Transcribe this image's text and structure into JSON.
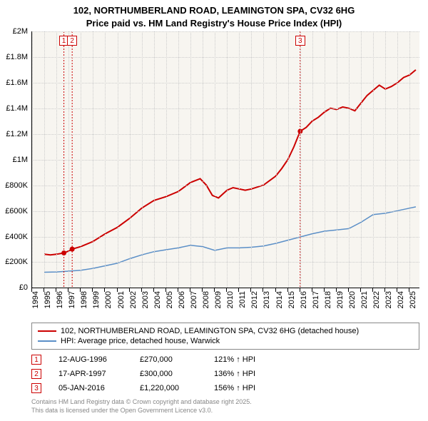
{
  "title_line1": "102, NORTHUMBERLAND ROAD, LEAMINGTON SPA, CV32 6HG",
  "title_line2": "Price paid vs. HM Land Registry's House Price Index (HPI)",
  "chart": {
    "type": "line",
    "background_color": "#f7f5f0",
    "grid_color": "#cccccc",
    "xlim": [
      1994,
      2025.8
    ],
    "ylim": [
      0,
      2000000
    ],
    "ytick_step": 200000,
    "yticks": [
      {
        "v": 0,
        "label": "£0"
      },
      {
        "v": 200000,
        "label": "£200K"
      },
      {
        "v": 400000,
        "label": "£400K"
      },
      {
        "v": 600000,
        "label": "£600K"
      },
      {
        "v": 800000,
        "label": "£800K"
      },
      {
        "v": 1000000,
        "label": "£1M"
      },
      {
        "v": 1200000,
        "label": "£1.2M"
      },
      {
        "v": 1400000,
        "label": "£1.4M"
      },
      {
        "v": 1600000,
        "label": "£1.6M"
      },
      {
        "v": 1800000,
        "label": "£1.8M"
      },
      {
        "v": 2000000,
        "label": "£2M"
      }
    ],
    "xticks": [
      1994,
      1995,
      1996,
      1997,
      1998,
      1999,
      2000,
      2001,
      2002,
      2003,
      2004,
      2005,
      2006,
      2007,
      2008,
      2009,
      2010,
      2011,
      2012,
      2013,
      2014,
      2015,
      2016,
      2017,
      2018,
      2019,
      2020,
      2021,
      2022,
      2023,
      2024,
      2025
    ],
    "series": [
      {
        "name": "102, NORTHUMBERLAND ROAD, LEAMINGTON SPA, CV32 6HG (detached house)",
        "color": "#cc0000",
        "line_width": 2,
        "data": [
          [
            1995,
            260000
          ],
          [
            1995.5,
            255000
          ],
          [
            1996,
            260000
          ],
          [
            1996.6,
            270000
          ],
          [
            1997,
            285000
          ],
          [
            1997.3,
            300000
          ],
          [
            1998,
            320000
          ],
          [
            1999,
            360000
          ],
          [
            2000,
            420000
          ],
          [
            2001,
            470000
          ],
          [
            2002,
            540000
          ],
          [
            2003,
            620000
          ],
          [
            2004,
            680000
          ],
          [
            2005,
            710000
          ],
          [
            2006,
            750000
          ],
          [
            2007,
            820000
          ],
          [
            2007.8,
            850000
          ],
          [
            2008.3,
            800000
          ],
          [
            2008.8,
            720000
          ],
          [
            2009.3,
            700000
          ],
          [
            2010,
            760000
          ],
          [
            2010.5,
            780000
          ],
          [
            2011,
            770000
          ],
          [
            2011.5,
            760000
          ],
          [
            2012,
            770000
          ],
          [
            2013,
            800000
          ],
          [
            2014,
            870000
          ],
          [
            2014.5,
            930000
          ],
          [
            2015,
            1000000
          ],
          [
            2015.5,
            1100000
          ],
          [
            2016,
            1220000
          ],
          [
            2016.5,
            1250000
          ],
          [
            2017,
            1300000
          ],
          [
            2017.5,
            1330000
          ],
          [
            2018,
            1370000
          ],
          [
            2018.5,
            1400000
          ],
          [
            2019,
            1390000
          ],
          [
            2019.5,
            1410000
          ],
          [
            2020,
            1400000
          ],
          [
            2020.5,
            1380000
          ],
          [
            2021,
            1440000
          ],
          [
            2021.5,
            1500000
          ],
          [
            2022,
            1540000
          ],
          [
            2022.5,
            1580000
          ],
          [
            2023,
            1550000
          ],
          [
            2023.5,
            1570000
          ],
          [
            2024,
            1600000
          ],
          [
            2024.5,
            1640000
          ],
          [
            2025,
            1660000
          ],
          [
            2025.5,
            1700000
          ]
        ]
      },
      {
        "name": "HPI: Average price, detached house, Warwick",
        "color": "#5b8fc7",
        "line_width": 1.5,
        "data": [
          [
            1995,
            120000
          ],
          [
            1996,
            122000
          ],
          [
            1997,
            128000
          ],
          [
            1998,
            135000
          ],
          [
            1999,
            150000
          ],
          [
            2000,
            170000
          ],
          [
            2001,
            190000
          ],
          [
            2002,
            225000
          ],
          [
            2003,
            255000
          ],
          [
            2004,
            280000
          ],
          [
            2005,
            295000
          ],
          [
            2006,
            310000
          ],
          [
            2007,
            330000
          ],
          [
            2008,
            320000
          ],
          [
            2009,
            290000
          ],
          [
            2010,
            310000
          ],
          [
            2011,
            310000
          ],
          [
            2012,
            315000
          ],
          [
            2013,
            325000
          ],
          [
            2014,
            345000
          ],
          [
            2015,
            370000
          ],
          [
            2016,
            395000
          ],
          [
            2017,
            420000
          ],
          [
            2018,
            440000
          ],
          [
            2019,
            450000
          ],
          [
            2020,
            460000
          ],
          [
            2021,
            510000
          ],
          [
            2022,
            570000
          ],
          [
            2023,
            580000
          ],
          [
            2024,
            600000
          ],
          [
            2025,
            620000
          ],
          [
            2025.5,
            630000
          ]
        ]
      }
    ],
    "sale_markers": [
      {
        "n": "1",
        "x": 1996.61,
        "y": 270000,
        "color": "#cc0000"
      },
      {
        "n": "2",
        "x": 1997.29,
        "y": 300000,
        "color": "#cc0000"
      },
      {
        "n": "3",
        "x": 2016.01,
        "y": 1220000,
        "color": "#cc0000"
      }
    ]
  },
  "legend": [
    {
      "label": "102, NORTHUMBERLAND ROAD, LEAMINGTON SPA, CV32 6HG (detached house)",
      "color": "#cc0000"
    },
    {
      "label": "HPI: Average price, detached house, Warwick",
      "color": "#5b8fc7"
    }
  ],
  "sales": [
    {
      "n": "1",
      "date": "12-AUG-1996",
      "price": "£270,000",
      "hpi": "121% ↑ HPI",
      "color": "#cc0000"
    },
    {
      "n": "2",
      "date": "17-APR-1997",
      "price": "£300,000",
      "hpi": "136% ↑ HPI",
      "color": "#cc0000"
    },
    {
      "n": "3",
      "date": "05-JAN-2016",
      "price": "£1,220,000",
      "hpi": "156% ↑ HPI",
      "color": "#cc0000"
    }
  ],
  "footer_line1": "Contains HM Land Registry data © Crown copyright and database right 2025.",
  "footer_line2": "This data is licensed under the Open Government Licence v3.0."
}
